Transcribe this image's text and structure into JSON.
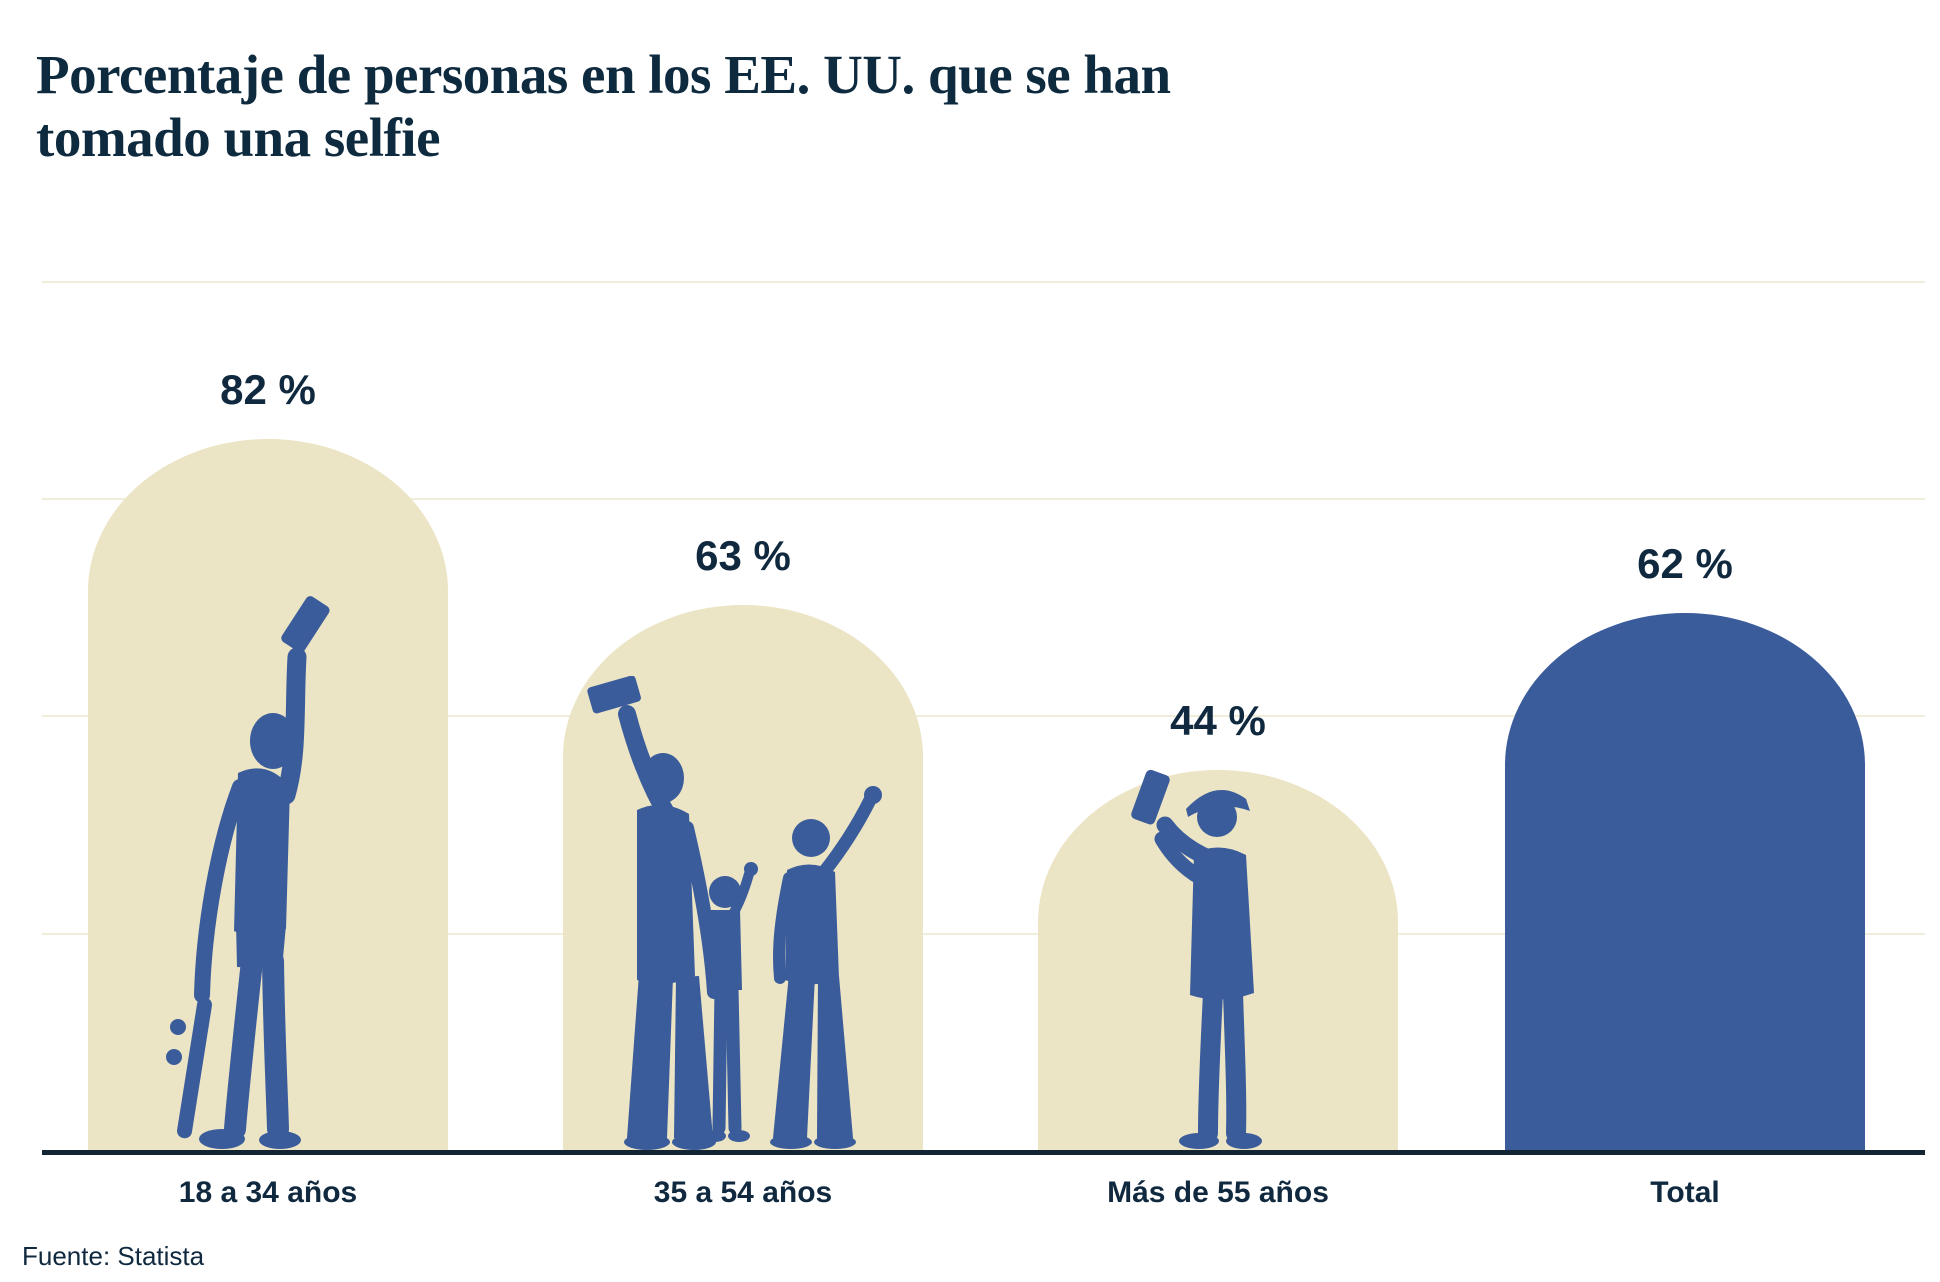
{
  "page": {
    "title_lines": [
      "Porcentaje de personas en los EE. UU. que se han",
      "tomado una selfie"
    ],
    "source": "Fuente: Statista"
  },
  "colors": {
    "background": "#ffffff",
    "title_text": "#0e2a3e",
    "label_text": "#10293f",
    "axis_line": "#132433",
    "gridline": "#f1eddb",
    "bar_cream": "#ebe4c5",
    "bar_blue": "#3b5c9b",
    "silhouette_blue": "#3b5c9b"
  },
  "chart_data": {
    "type": "bar",
    "title": "Porcentaje de personas en los EE. UU. que se han tomado una selfie",
    "source": "Fuente: Statista",
    "categories": [
      "18 a 34 años",
      "35 a 54 años",
      "Más de 55 años",
      "Total"
    ],
    "values": [
      82,
      63,
      44,
      62
    ],
    "unit": "%",
    "xlabel": "",
    "ylabel": "",
    "ylim": [
      0,
      100
    ],
    "grid": true,
    "gridline_values": [
      25,
      50,
      75,
      100
    ],
    "legend": false,
    "bar_shape": "rounded-arch",
    "bars": [
      {
        "category": "18 a 34 años",
        "value": 82,
        "label": "82 %",
        "fill": "#ebe4c5",
        "silhouette": "young-man-taking-selfie-holding-skateboard"
      },
      {
        "category": "35 a 54 años",
        "value": 63,
        "label": "63 %",
        "fill": "#ebe4c5",
        "silhouette": "family-of-three-taking-selfie"
      },
      {
        "category": "Más de 55 años",
        "value": 44,
        "label": "44 %",
        "fill": "#ebe4c5",
        "silhouette": "older-man-with-flat-cap-taking-selfie"
      },
      {
        "category": "Total",
        "value": 62,
        "label": "62 %",
        "fill": "#3b5c9b",
        "silhouette": null
      }
    ]
  }
}
